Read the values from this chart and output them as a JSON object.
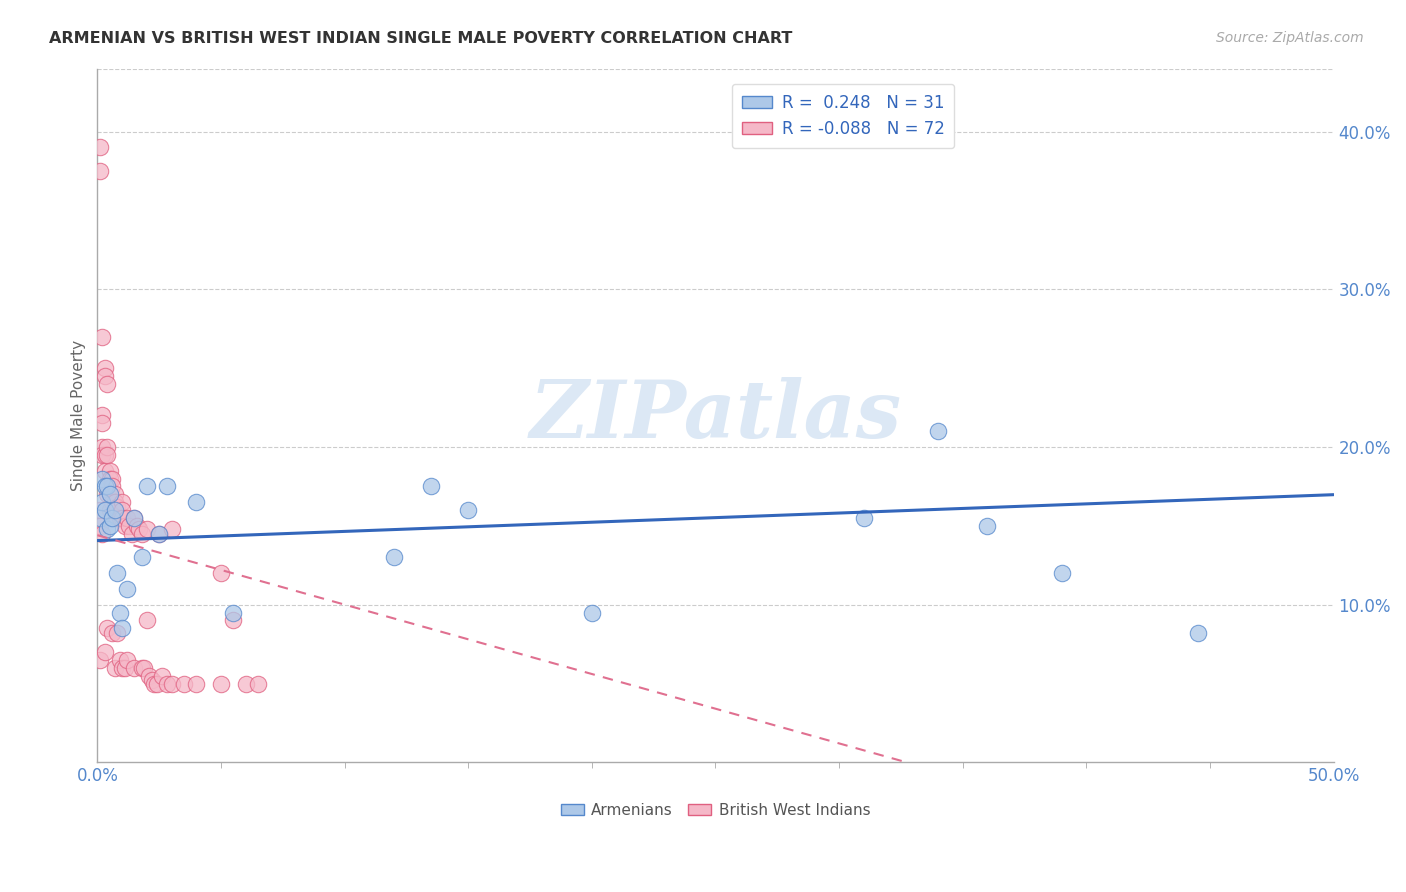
{
  "title": "ARMENIAN VS BRITISH WEST INDIAN SINGLE MALE POVERTY CORRELATION CHART",
  "source": "Source: ZipAtlas.com",
  "ylabel": "Single Male Poverty",
  "xlim": [
    0,
    0.5
  ],
  "ylim": [
    0,
    0.44
  ],
  "xtick_positions": [
    0.0,
    0.5
  ],
  "xtick_labels": [
    "0.0%",
    "50.0%"
  ],
  "ytick_positions": [
    0.1,
    0.2,
    0.3,
    0.4
  ],
  "ytick_labels": [
    "10.0%",
    "20.0%",
    "30.0%",
    "40.0%"
  ],
  "armenians_R": 0.248,
  "armenians_N": 31,
  "bwi_R": -0.088,
  "bwi_N": 72,
  "color_armenians_fill": "#adc8e8",
  "color_armenians_edge": "#5588cc",
  "color_bwi_fill": "#f5b8c8",
  "color_bwi_edge": "#e06080",
  "color_armenians_line": "#3366bb",
  "color_bwi_line": "#e07090",
  "armenians_x": [
    0.001,
    0.002,
    0.002,
    0.003,
    0.003,
    0.004,
    0.004,
    0.005,
    0.005,
    0.006,
    0.007,
    0.008,
    0.009,
    0.01,
    0.012,
    0.015,
    0.018,
    0.02,
    0.025,
    0.028,
    0.04,
    0.055,
    0.12,
    0.135,
    0.15,
    0.2,
    0.31,
    0.34,
    0.36,
    0.39,
    0.445
  ],
  "armenians_y": [
    0.155,
    0.165,
    0.18,
    0.16,
    0.175,
    0.148,
    0.175,
    0.15,
    0.17,
    0.155,
    0.16,
    0.12,
    0.095,
    0.085,
    0.11,
    0.155,
    0.13,
    0.175,
    0.145,
    0.175,
    0.165,
    0.095,
    0.13,
    0.175,
    0.16,
    0.095,
    0.155,
    0.21,
    0.15,
    0.12,
    0.082
  ],
  "bwi_x": [
    0.001,
    0.001,
    0.001,
    0.001,
    0.001,
    0.002,
    0.002,
    0.002,
    0.002,
    0.002,
    0.002,
    0.003,
    0.003,
    0.003,
    0.003,
    0.003,
    0.004,
    0.004,
    0.004,
    0.004,
    0.004,
    0.005,
    0.005,
    0.005,
    0.005,
    0.006,
    0.006,
    0.006,
    0.006,
    0.007,
    0.007,
    0.007,
    0.008,
    0.008,
    0.008,
    0.009,
    0.009,
    0.01,
    0.01,
    0.01,
    0.01,
    0.011,
    0.011,
    0.012,
    0.012,
    0.013,
    0.014,
    0.015,
    0.015,
    0.016,
    0.017,
    0.018,
    0.018,
    0.019,
    0.02,
    0.02,
    0.021,
    0.022,
    0.023,
    0.024,
    0.025,
    0.026,
    0.028,
    0.03,
    0.03,
    0.035,
    0.04,
    0.05,
    0.05,
    0.055,
    0.06,
    0.065
  ],
  "bwi_y": [
    0.39,
    0.375,
    0.16,
    0.15,
    0.065,
    0.27,
    0.22,
    0.215,
    0.2,
    0.195,
    0.145,
    0.25,
    0.245,
    0.195,
    0.185,
    0.07,
    0.24,
    0.2,
    0.195,
    0.17,
    0.085,
    0.185,
    0.18,
    0.17,
    0.16,
    0.18,
    0.175,
    0.165,
    0.082,
    0.17,
    0.165,
    0.06,
    0.162,
    0.155,
    0.082,
    0.155,
    0.065,
    0.165,
    0.16,
    0.155,
    0.06,
    0.15,
    0.06,
    0.155,
    0.065,
    0.15,
    0.145,
    0.155,
    0.06,
    0.15,
    0.148,
    0.145,
    0.06,
    0.06,
    0.148,
    0.09,
    0.055,
    0.052,
    0.05,
    0.05,
    0.145,
    0.055,
    0.05,
    0.148,
    0.05,
    0.05,
    0.05,
    0.12,
    0.05,
    0.09,
    0.05,
    0.05
  ],
  "background_color": "#ffffff",
  "watermark_text": "ZIPatlas",
  "watermark_color": "#dce8f5",
  "grid_color": "#cccccc",
  "spine_color": "#aaaaaa",
  "tick_color": "#5588cc"
}
